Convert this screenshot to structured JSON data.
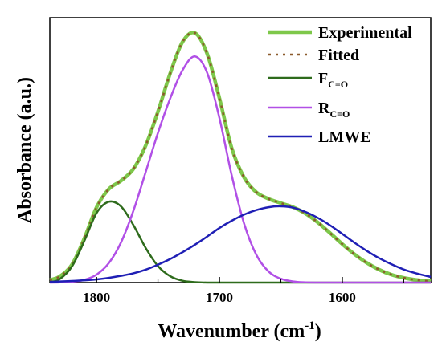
{
  "chart_data": {
    "type": "line",
    "xlabel_main": "Wavenumber (cm",
    "xlabel_sup": "-1",
    "xlabel_close": ")",
    "ylabel": "Absorbance (a.u.)",
    "x_reversed": true,
    "xlim": [
      1838,
      1528
    ],
    "ylim": [
      0,
      1.17
    ],
    "xticks": [
      1800,
      1700,
      1600
    ],
    "xtick_labels": [
      "1800",
      "1700",
      "1600"
    ],
    "legend_position": "top-right",
    "grid": false,
    "x": [
      1838,
      1830,
      1820,
      1810,
      1800,
      1790,
      1780,
      1770,
      1760,
      1750,
      1740,
      1730,
      1720,
      1710,
      1700,
      1690,
      1680,
      1670,
      1660,
      1650,
      1640,
      1630,
      1620,
      1610,
      1600,
      1590,
      1580,
      1570,
      1560,
      1550,
      1540,
      1528
    ],
    "series": [
      {
        "name": "Experimental",
        "color": "#7ec84a",
        "dash": "",
        "width": 4.5,
        "values": [
          0.011,
          0.027,
          0.079,
          0.194,
          0.332,
          0.413,
          0.45,
          0.502,
          0.605,
          0.755,
          0.925,
          1.063,
          1.103,
          1.011,
          0.815,
          0.594,
          0.465,
          0.399,
          0.37,
          0.351,
          0.333,
          0.305,
          0.266,
          0.219,
          0.17,
          0.125,
          0.087,
          0.057,
          0.035,
          0.021,
          0.012,
          0.006
        ]
      },
      {
        "name": "Fitted",
        "color": "#8b5a2b",
        "dash": "3,6",
        "width": 2.5,
        "values": [
          0.011,
          0.027,
          0.079,
          0.194,
          0.332,
          0.413,
          0.45,
          0.502,
          0.605,
          0.755,
          0.925,
          1.063,
          1.103,
          1.011,
          0.815,
          0.594,
          0.465,
          0.399,
          0.37,
          0.351,
          0.333,
          0.305,
          0.266,
          0.219,
          0.17,
          0.125,
          0.087,
          0.057,
          0.035,
          0.021,
          0.012,
          0.006
        ]
      },
      {
        "name_main": "F",
        "name_sub": "C=O",
        "color": "#2e6b1c",
        "dash": "",
        "width": 2.5,
        "values": [
          0.001,
          0.015,
          0.071,
          0.183,
          0.307,
          0.357,
          0.336,
          0.254,
          0.153,
          0.073,
          0.028,
          0.008,
          0.002,
          0,
          0,
          0,
          0,
          0,
          0,
          0,
          0,
          0,
          0,
          0,
          0,
          0,
          0,
          0,
          0,
          0,
          0,
          0
        ]
      },
      {
        "name_main": "R",
        "name_sub": "C=O",
        "color": "#b150e6",
        "dash": "",
        "width": 2.5,
        "values": [
          0,
          0.001,
          0.004,
          0.012,
          0.035,
          0.086,
          0.178,
          0.317,
          0.488,
          0.661,
          0.814,
          0.938,
          0.999,
          0.927,
          0.727,
          0.474,
          0.262,
          0.123,
          0.049,
          0.017,
          0.005,
          0.001,
          0,
          0,
          0,
          0,
          0,
          0,
          0,
          0,
          0,
          0
        ]
      },
      {
        "name": "LMWE",
        "color": "#1f1fb5",
        "dash": "",
        "width": 2.5,
        "values": [
          0.003,
          0.005,
          0.007,
          0.01,
          0.014,
          0.021,
          0.03,
          0.041,
          0.057,
          0.079,
          0.104,
          0.134,
          0.167,
          0.203,
          0.241,
          0.273,
          0.3,
          0.32,
          0.333,
          0.337,
          0.331,
          0.312,
          0.286,
          0.253,
          0.215,
          0.176,
          0.14,
          0.108,
          0.081,
          0.058,
          0.041,
          0.025
        ]
      }
    ]
  }
}
